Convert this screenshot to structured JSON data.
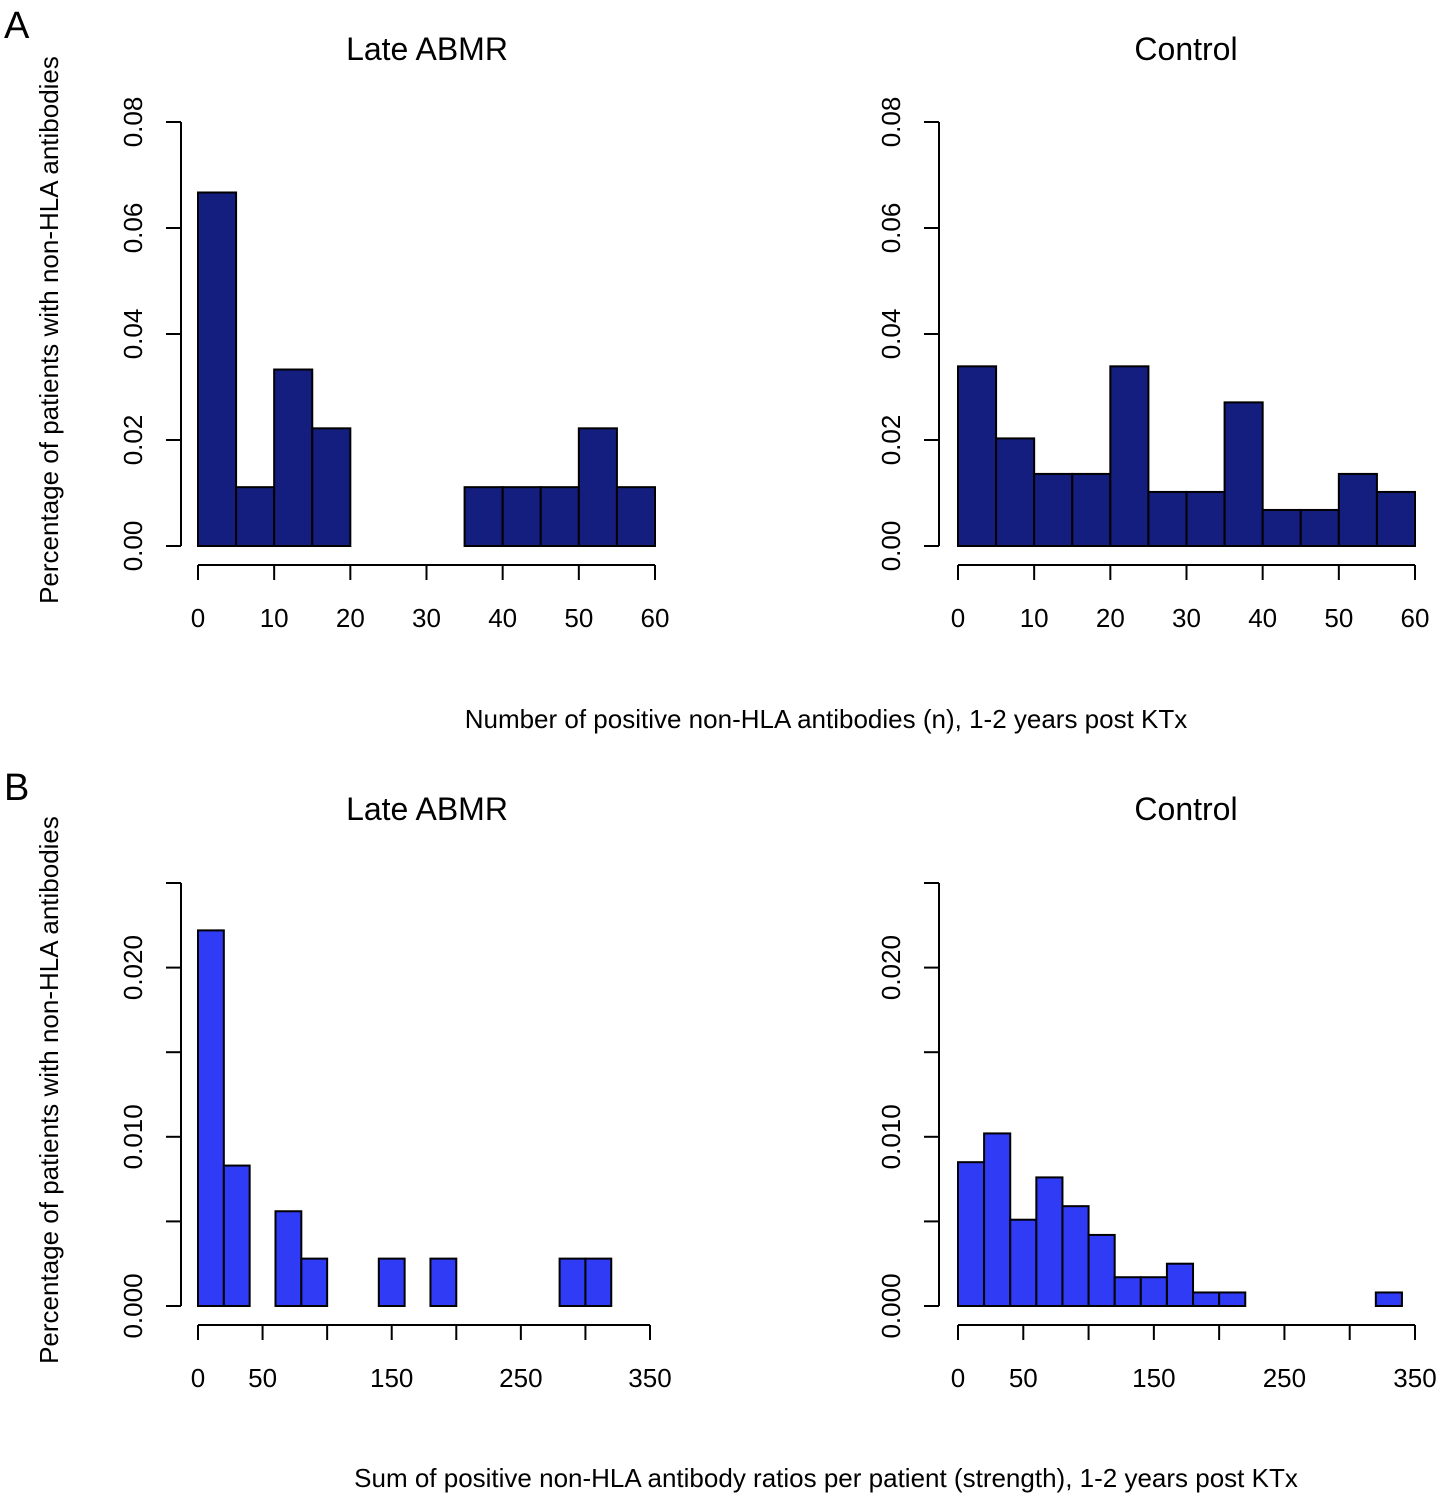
{
  "colors": {
    "panel_a_bar": "#131e7f",
    "panel_b_bar": "#2f3bf4",
    "outline": "#000000"
  },
  "panels": [
    {
      "letter": "A",
      "ylabel": "Percentage of patients with non-HLA antibodies",
      "xlabel": "Number of positive non-HLA antibodies (n), 1-2 years post KTx"
    },
    {
      "letter": "B",
      "ylabel": "Percentage of patients with non-HLA antibodies",
      "xlabel": "Sum of positive non-HLA antibody ratios per patient (strength), 1-2 years post KTx"
    }
  ],
  "chart_data": [
    {
      "id": "a-late-abmr",
      "panel": "A",
      "type": "bar",
      "title": "Late ABMR",
      "bin_edges": [
        0,
        5,
        10,
        15,
        20,
        25,
        30,
        35,
        40,
        45,
        50,
        55,
        60
      ],
      "values": [
        0.0667,
        0.0111,
        0.0333,
        0.0222,
        0,
        0,
        0,
        0.0111,
        0.0111,
        0.0111,
        0.0222,
        0.0111
      ],
      "xticks": [
        0,
        10,
        20,
        30,
        40,
        50,
        60
      ],
      "xtick_labels": [
        "0",
        "10",
        "20",
        "30",
        "40",
        "50",
        "60"
      ],
      "yticks": [
        0,
        0.02,
        0.04,
        0.06,
        0.08
      ],
      "ytick_labels": [
        "0.00",
        "0.02",
        "0.04",
        "0.06",
        "0.08"
      ],
      "xlim": [
        0,
        60
      ],
      "ylim": [
        0,
        0.08
      ]
    },
    {
      "id": "a-control",
      "panel": "A",
      "type": "bar",
      "title": "Control",
      "bin_edges": [
        0,
        5,
        10,
        15,
        20,
        25,
        30,
        35,
        40,
        45,
        50,
        55,
        60
      ],
      "values": [
        0.0339,
        0.0203,
        0.0136,
        0.0136,
        0.0339,
        0.0102,
        0.0102,
        0.0271,
        0.0068,
        0.0068,
        0.0136,
        0.0102
      ],
      "xticks": [
        0,
        10,
        20,
        30,
        40,
        50,
        60
      ],
      "xtick_labels": [
        "0",
        "10",
        "20",
        "30",
        "40",
        "50",
        "60"
      ],
      "yticks": [
        0,
        0.02,
        0.04,
        0.06,
        0.08
      ],
      "ytick_labels": [
        "0.00",
        "0.02",
        "0.04",
        "0.06",
        "0.08"
      ],
      "xlim": [
        0,
        60
      ],
      "ylim": [
        0,
        0.08
      ]
    },
    {
      "id": "b-late-abmr",
      "panel": "B",
      "type": "bar",
      "title": "Late ABMR",
      "bin_edges": [
        0,
        20,
        40,
        60,
        80,
        100,
        120,
        140,
        160,
        180,
        200,
        220,
        240,
        260,
        280,
        300,
        320
      ],
      "values": [
        0.0222,
        0.0083,
        0,
        0.0056,
        0.0028,
        0,
        0,
        0.0028,
        0,
        0.0028,
        0,
        0,
        0,
        0,
        0.0028,
        0.0028
      ],
      "xticks": [
        0,
        50,
        100,
        150,
        200,
        250,
        300,
        350
      ],
      "xtick_labels": [
        "0",
        "50",
        "",
        "150",
        "",
        "250",
        "",
        "350"
      ],
      "yticks": [
        0,
        0.005,
        0.01,
        0.015,
        0.02,
        0.025
      ],
      "ytick_labels": [
        "0.000",
        "",
        "0.010",
        "",
        "0.020",
        ""
      ],
      "xlim": [
        0,
        350
      ],
      "ylim": [
        0,
        0.025
      ]
    },
    {
      "id": "b-control",
      "panel": "B",
      "type": "bar",
      "title": "Control",
      "bin_edges": [
        0,
        20,
        40,
        60,
        80,
        100,
        120,
        140,
        160,
        180,
        200,
        220,
        240,
        260,
        280,
        300,
        320,
        340
      ],
      "values": [
        0.0085,
        0.0102,
        0.0051,
        0.0076,
        0.0059,
        0.0042,
        0.0017,
        0.0017,
        0.0025,
        0.0008,
        0.0008,
        0,
        0,
        0,
        0,
        0,
        0.0008
      ],
      "xticks": [
        0,
        50,
        100,
        150,
        200,
        250,
        300,
        350
      ],
      "xtick_labels": [
        "0",
        "50",
        "",
        "150",
        "",
        "250",
        "",
        "350"
      ],
      "yticks": [
        0,
        0.005,
        0.01,
        0.015,
        0.02,
        0.025
      ],
      "ytick_labels": [
        "0.000",
        "",
        "0.010",
        "",
        "0.020",
        ""
      ],
      "xlim": [
        0,
        350
      ],
      "ylim": [
        0,
        0.025
      ]
    }
  ]
}
